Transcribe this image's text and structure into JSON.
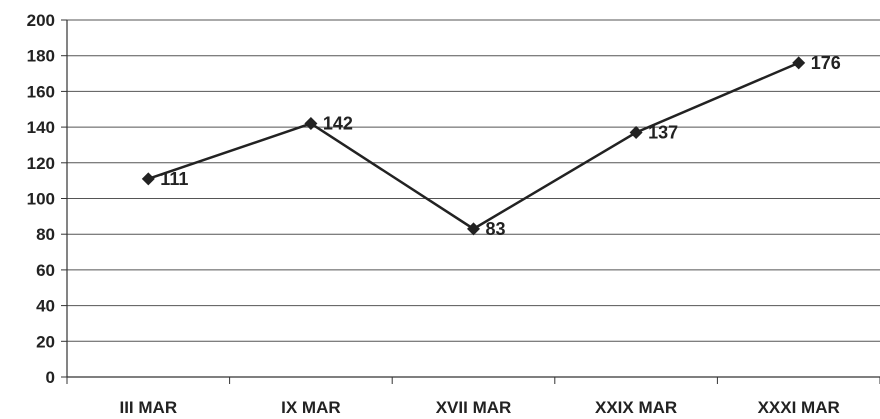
{
  "chart_data": {
    "type": "line",
    "categories": [
      "III MAR",
      "IX MAR",
      "XVII MAR",
      "XXIX MAR",
      "XXXI MAR"
    ],
    "values": [
      111,
      142,
      83,
      137,
      176
    ],
    "data_labels": [
      "111",
      "142",
      "83",
      "137",
      "176"
    ],
    "y_ticks": [
      "0",
      "20",
      "40",
      "60",
      "80",
      "100",
      "120",
      "140",
      "160",
      "180",
      "200"
    ],
    "ylim": [
      0,
      200
    ],
    "grid": true,
    "legend": "none",
    "marker": "diamond",
    "colors": {
      "line": "#222222",
      "grid": "#555555",
      "axis": "#333333"
    }
  }
}
